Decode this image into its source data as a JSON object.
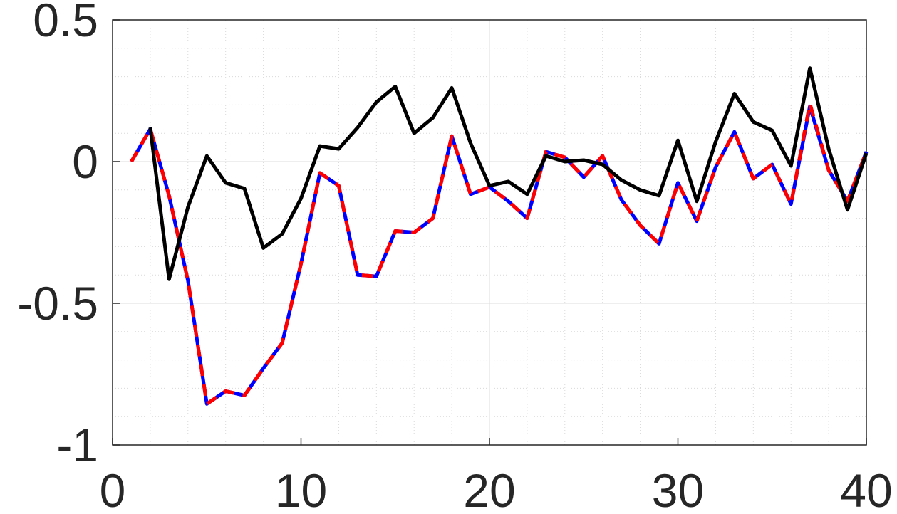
{
  "chart_data": {
    "type": "line",
    "title": "",
    "xlabel": "",
    "ylabel": "",
    "xlim": [
      0,
      40
    ],
    "ylim": [
      -1,
      0.5
    ],
    "xticks": [
      0,
      10,
      20,
      30,
      40
    ],
    "xtick_labels": [
      "0",
      "10",
      "20",
      "30",
      "40"
    ],
    "yticks": [
      -1,
      -0.5,
      0,
      0.5
    ],
    "ytick_labels": [
      "-1",
      "-0.5",
      "0",
      "0.5"
    ],
    "grid": true,
    "minor_grid": true,
    "legend": "none",
    "x": [
      1,
      2,
      3,
      4,
      5,
      6,
      7,
      8,
      9,
      10,
      11,
      12,
      13,
      14,
      15,
      16,
      17,
      18,
      19,
      20,
      21,
      22,
      23,
      24,
      25,
      26,
      27,
      28,
      29,
      30,
      31,
      32,
      33,
      34,
      35,
      36,
      37,
      38,
      39,
      40
    ],
    "series": [
      {
        "color": "#0000ff",
        "style": "solid",
        "values": [
          0.0,
          0.115,
          -0.12,
          -0.42,
          -0.855,
          -0.81,
          -0.825,
          -0.73,
          -0.64,
          -0.36,
          -0.04,
          -0.085,
          -0.4,
          -0.405,
          -0.245,
          -0.25,
          -0.2,
          0.09,
          -0.115,
          -0.09,
          -0.14,
          -0.2,
          0.035,
          0.015,
          -0.055,
          0.02,
          -0.135,
          -0.225,
          -0.29,
          -0.075,
          -0.21,
          -0.02,
          0.105,
          -0.06,
          -0.01,
          -0.15,
          0.195,
          -0.03,
          -0.14,
          0.035
        ]
      },
      {
        "color": "#ff0000",
        "style": "dashed",
        "values": [
          0.0,
          0.115,
          -0.12,
          -0.42,
          -0.855,
          -0.81,
          -0.825,
          -0.73,
          -0.64,
          -0.36,
          -0.04,
          -0.085,
          -0.4,
          -0.405,
          -0.245,
          -0.25,
          -0.2,
          0.09,
          -0.115,
          -0.09,
          -0.14,
          -0.2,
          0.035,
          0.015,
          -0.055,
          0.02,
          -0.135,
          -0.225,
          -0.29,
          -0.075,
          -0.21,
          -0.02,
          0.105,
          -0.06,
          -0.01,
          -0.15,
          0.205,
          -0.03,
          -0.14,
          0.035
        ]
      },
      {
        "color": "#000000",
        "style": "solid",
        "values": [
          null,
          0.12,
          -0.415,
          -0.16,
          0.02,
          -0.075,
          -0.095,
          -0.305,
          -0.255,
          -0.13,
          0.055,
          0.045,
          0.12,
          0.21,
          0.265,
          0.1,
          0.155,
          0.26,
          0.065,
          -0.085,
          -0.07,
          -0.115,
          0.02,
          0.0,
          0.005,
          -0.01,
          -0.065,
          -0.1,
          -0.12,
          0.075,
          -0.14,
          0.07,
          0.24,
          0.14,
          0.11,
          -0.015,
          0.33,
          0.045,
          -0.17,
          0.03
        ]
      }
    ]
  }
}
